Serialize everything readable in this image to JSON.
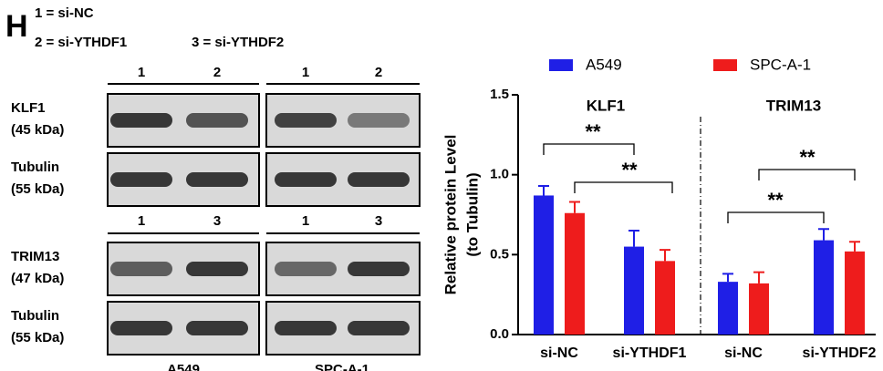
{
  "panel_label": "H",
  "key": {
    "line1": "1 = si-NC",
    "line2": "2 = si-YTHDF1",
    "line3": "3 = si-YTHDF2"
  },
  "blots": [
    {
      "lanes": [
        "1",
        "2",
        "1",
        "2"
      ],
      "rows": [
        {
          "name": "KLF1",
          "size": "(45 kDa)"
        },
        {
          "name": "Tubulin",
          "size": "(55 kDa)"
        }
      ]
    },
    {
      "lanes": [
        "1",
        "3",
        "1",
        "3"
      ],
      "rows": [
        {
          "name": "TRIM13",
          "size": "(47 kDa)"
        },
        {
          "name": "Tubulin",
          "size": "(55 kDa)"
        }
      ]
    }
  ],
  "cell_lines": [
    "A549",
    "SPC-A-1"
  ],
  "chart_data": {
    "type": "bar",
    "y_label_lines": [
      "Relative protein Level",
      "(to Tubulin)"
    ],
    "group_titles": [
      "KLF1",
      "TRIM13"
    ],
    "categories": [
      "si-NC",
      "si-YTHDF1",
      "si-NC",
      "si-YTHDF2"
    ],
    "series": [
      {
        "name": "A549",
        "color": "#1f1fe6",
        "values": [
          0.87,
          0.55,
          0.33,
          0.59
        ],
        "errors": [
          0.06,
          0.1,
          0.05,
          0.07
        ]
      },
      {
        "name": "SPC-A-1",
        "color": "#ee1c1c",
        "values": [
          0.76,
          0.46,
          0.32,
          0.52
        ],
        "errors": [
          0.07,
          0.07,
          0.07,
          0.06
        ]
      }
    ],
    "ylim": [
      0,
      1.5
    ],
    "yticks": [
      {
        "value": 0,
        "label": "0.0"
      },
      {
        "value": 0.5,
        "label": "0.5"
      },
      {
        "value": 1,
        "label": "1.0"
      },
      {
        "value": 1.5,
        "label": "1.5"
      }
    ],
    "annotations": [
      "**",
      "**",
      "**",
      "**"
    ]
  }
}
